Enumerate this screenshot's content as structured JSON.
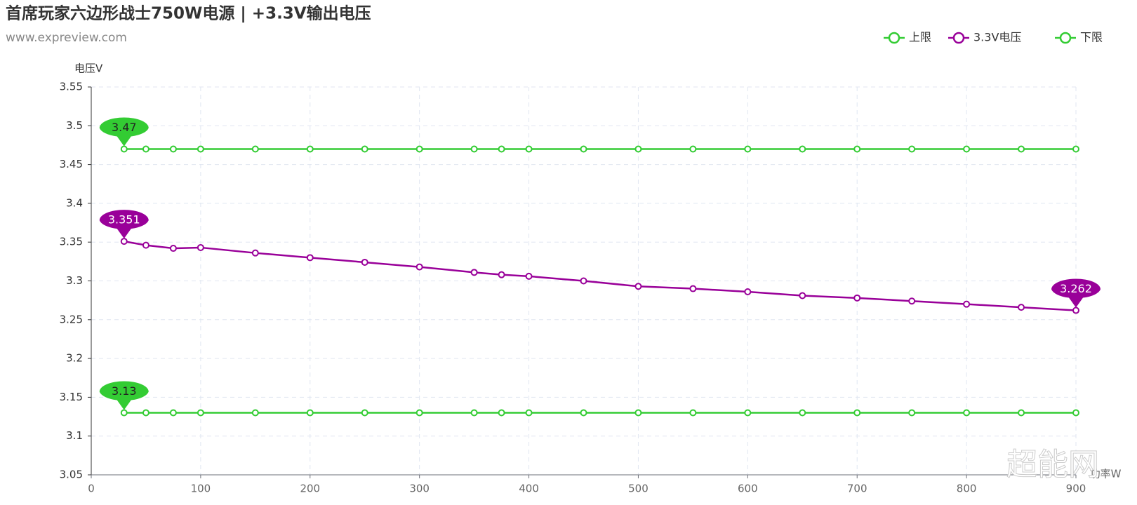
{
  "chart_data": {
    "type": "line",
    "title": "首席玩家六边形战士750W电源 | +3.3V输出电压",
    "subtitle": "www.expreview.com",
    "y_label": "电压V",
    "x_label": "功率W",
    "watermark": "超能网",
    "x": [
      30,
      50,
      75,
      100,
      150,
      200,
      250,
      300,
      350,
      375,
      400,
      450,
      500,
      550,
      600,
      650,
      700,
      750,
      800,
      850,
      900
    ],
    "series": [
      {
        "name": "上限",
        "color": "#33cc33",
        "max_min_labels": true,
        "values": [
          3.47,
          3.47,
          3.47,
          3.47,
          3.47,
          3.47,
          3.47,
          3.47,
          3.47,
          3.47,
          3.47,
          3.47,
          3.47,
          3.47,
          3.47,
          3.47,
          3.47,
          3.47,
          3.47,
          3.47,
          3.47
        ]
      },
      {
        "name": "3.3V电压",
        "color": "#990099",
        "max_min_labels": true,
        "values": [
          3.351,
          3.346,
          3.342,
          3.343,
          3.336,
          3.33,
          3.324,
          3.318,
          3.311,
          3.308,
          3.306,
          3.3,
          3.293,
          3.29,
          3.286,
          3.281,
          3.278,
          3.274,
          3.27,
          3.266,
          3.262
        ]
      },
      {
        "name": "下限",
        "color": "#33cc33",
        "max_min_labels": true,
        "values": [
          3.13,
          3.13,
          3.13,
          3.13,
          3.13,
          3.13,
          3.13,
          3.13,
          3.13,
          3.13,
          3.13,
          3.13,
          3.13,
          3.13,
          3.13,
          3.13,
          3.13,
          3.13,
          3.13,
          3.13,
          3.13
        ]
      }
    ],
    "xlim": [
      0,
      900
    ],
    "xticks": [
      0,
      100,
      200,
      300,
      400,
      500,
      600,
      700,
      800,
      900
    ],
    "ylim": [
      3.05,
      3.55
    ],
    "yticks": [
      3.05,
      3.1,
      3.15,
      3.2,
      3.25,
      3.3,
      3.35,
      3.4,
      3.45,
      3.5,
      3.55
    ],
    "grid": true,
    "legend": "top-right"
  }
}
